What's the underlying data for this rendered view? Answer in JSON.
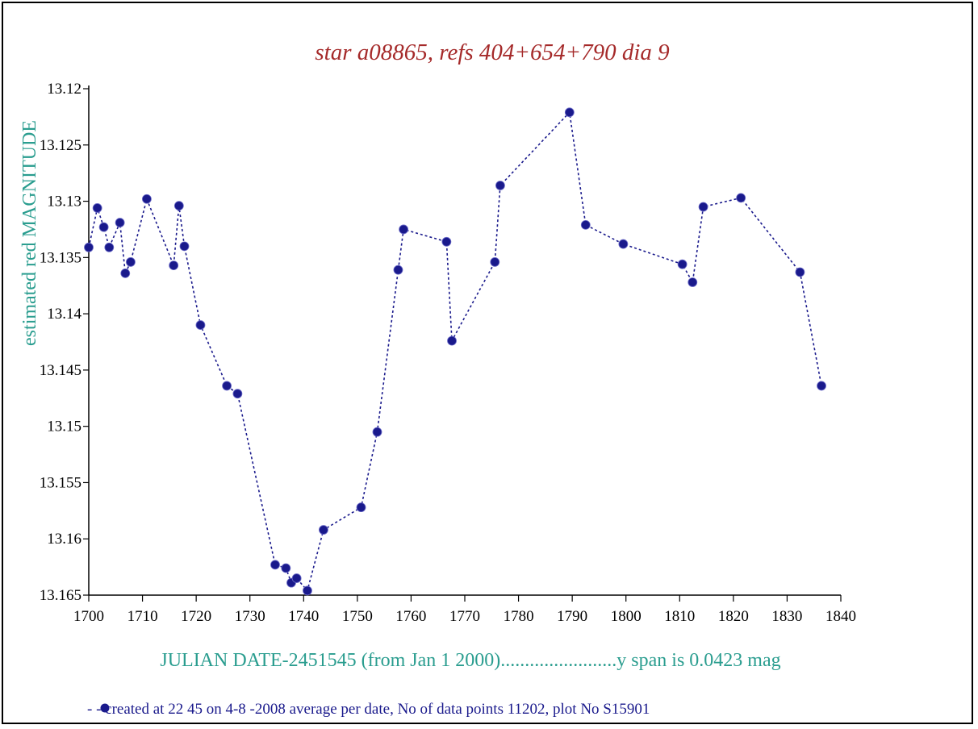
{
  "colors": {
    "title": "#a52a2a",
    "axis_label": "#2a9d8f",
    "series": "#1a1a8c",
    "footer_text": "#1a1a8c",
    "axis": "#000000",
    "frame": "#000000"
  },
  "chart_data": {
    "type": "line",
    "title": "star a08865, refs 404+654+790  dia  9",
    "ylabel": "estimated red MAGNITUDE",
    "xlabel": "JULIAN DATE-2451545 (from Jan 1 2000)........................y span is 0.0423 mag",
    "xlim": [
      1700,
      1840
    ],
    "ylim": [
      13.12,
      13.165
    ],
    "y_inverted": true,
    "grid": false,
    "line_style": "dotted",
    "marker": "circle",
    "x_ticks": [
      1700,
      1710,
      1720,
      1730,
      1740,
      1750,
      1760,
      1770,
      1780,
      1790,
      1800,
      1810,
      1820,
      1830,
      1840
    ],
    "y_ticks": [
      13.12,
      13.125,
      13.13,
      13.135,
      13.14,
      13.145,
      13.15,
      13.155,
      13.16,
      13.165
    ],
    "x_tick_labels": [
      "1700",
      "1710",
      "1720",
      "1730",
      "1740",
      "1750",
      "1760",
      "1770",
      "1780",
      "1790",
      "1800",
      "1810",
      "1820",
      "1830",
      "1840"
    ],
    "y_tick_labels": [
      "13.12",
      "13.125",
      "13.13",
      "13.135",
      "13.14",
      "13.145",
      "13.15",
      "13.155",
      "13.16",
      "13.165"
    ],
    "legend_text": "- -  created at 22 45 on 4-8 -2008 average per date, No of data points 11202,  plot No S15901",
    "series": [
      {
        "x": [
          1700,
          1701.6,
          1702.8,
          1703.8,
          1705.8,
          1706.8,
          1707.8,
          1710.8,
          1715.8,
          1716.8,
          1717.8,
          1720.8,
          1725.7,
          1727.7,
          1734.7,
          1736.7,
          1737.7,
          1738.7,
          1740.7,
          1743.7,
          1750.7,
          1753.7,
          1757.6,
          1758.6,
          1766.6,
          1767.6,
          1775.6,
          1776.6,
          1789.5,
          1792.5,
          1799.5,
          1810.5,
          1812.4,
          1814.4,
          1821.4,
          1832.4,
          1836.4
        ],
        "y": [
          13.1341,
          13.1306,
          13.1323,
          13.1341,
          13.1319,
          13.1364,
          13.1354,
          13.1298,
          13.1357,
          13.1304,
          13.134,
          13.141,
          13.1464,
          13.1471,
          13.1623,
          13.1626,
          13.1639,
          13.1635,
          13.1646,
          13.1592,
          13.1572,
          13.1505,
          13.1361,
          13.1325,
          13.1336,
          13.1424,
          13.1354,
          13.1286,
          13.1221,
          13.1321,
          13.1338,
          13.1356,
          13.1372,
          13.1305,
          13.1297,
          13.1363,
          13.1464
        ]
      }
    ]
  }
}
